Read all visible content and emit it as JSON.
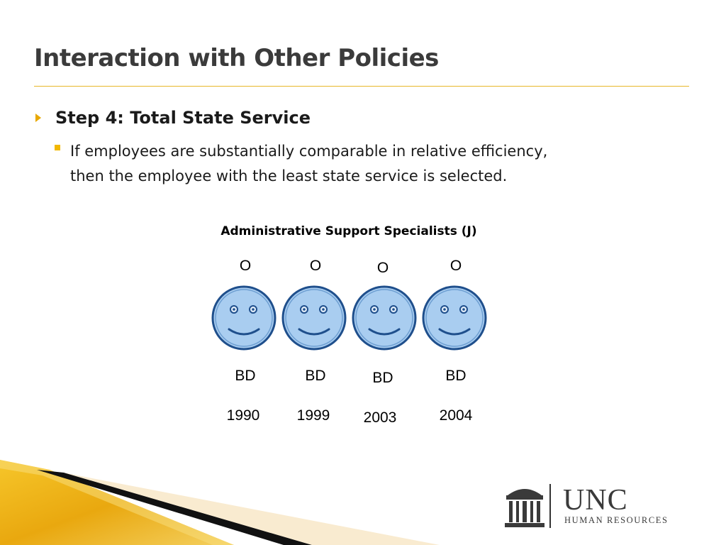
{
  "slide": {
    "title": "Interaction with Other Policies",
    "step_heading": "Step 4: Total State Service",
    "paragraph_lines": [
      "If employees are substantially comparable in relative efficiency,",
      "then the employee with the least state service is selected."
    ]
  },
  "group": {
    "title": "Administrative Support Specialists (J)",
    "people": [
      {
        "rating": "O",
        "bd_label": "BD",
        "year": "1990"
      },
      {
        "rating": "O",
        "bd_label": "BD",
        "year": "1999"
      },
      {
        "rating": "O",
        "bd_label": "BD",
        "year": "2003"
      },
      {
        "rating": "O",
        "bd_label": "BD",
        "year": "2004"
      }
    ]
  },
  "logo": {
    "name": "UNC",
    "subtitle": "HUMAN RESOURCES"
  },
  "colors": {
    "accent": "#e8b72a",
    "face_fill": "#a9cdf0",
    "face_stroke": "#1f4f8c"
  },
  "icons": [
    "smiley-face-icon",
    "triangle-bullet-icon",
    "square-bullet-icon",
    "old-well-icon"
  ]
}
